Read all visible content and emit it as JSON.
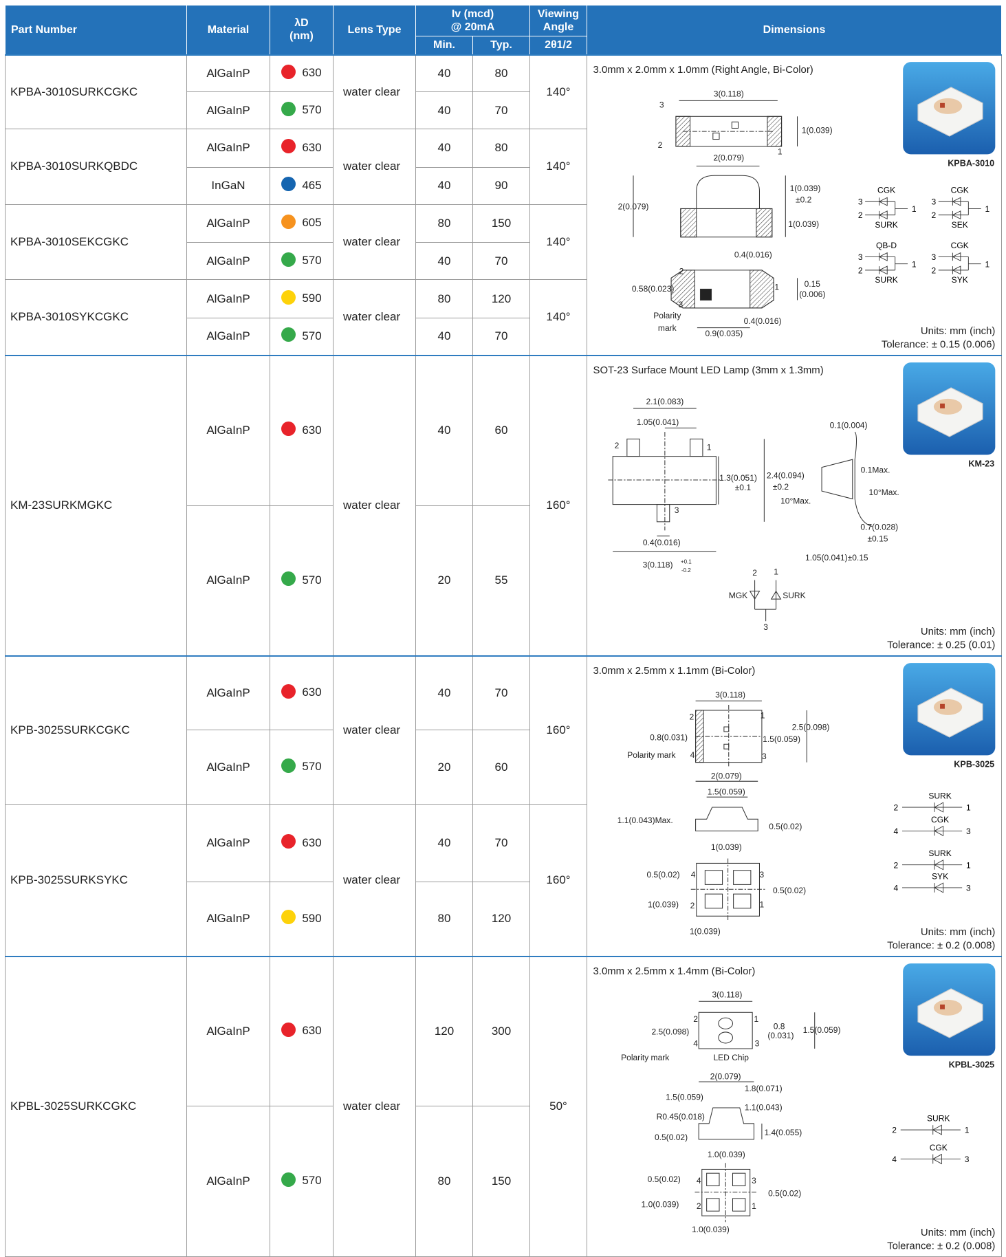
{
  "header": {
    "part_number": "Part Number",
    "material": "Material",
    "wavelength_symbol": "λD",
    "wavelength_unit": "(nm)",
    "lens_type": "Lens Type",
    "intensity": "Iv (mcd)",
    "intensity_condition": "@ 20mA",
    "viewing_angle": "Viewing Angle",
    "min": "Min.",
    "typ": "Typ.",
    "angle_symbol": "2θ1/2",
    "dimensions": "Dimensions"
  },
  "groups": [
    {
      "dimensions": {
        "title": "3.0mm x 2.0mm x 1.0mm (Right Angle, Bi-Color)",
        "image_caption": "KPBA-3010",
        "units": "Units: mm (inch)",
        "tolerance": "Tolerance: ± 0.15 (0.006)",
        "labels": [
          "3(0.118)",
          "3",
          "1(0.039)",
          "2",
          "1",
          "2(0.079)",
          "1(0.039)",
          "±0.2",
          "2(0.079)",
          "1(0.039)",
          "0.4(0.016)",
          "2",
          "0.58(0.023)",
          "1",
          "0.15",
          "(0.006)",
          "3",
          "Polarity",
          "mark",
          "0.4(0.016)",
          "0.9(0.035)"
        ],
        "schematics": [
          {
            "top": "CGK",
            "bottom": "SURK",
            "pins": [
              "3",
              "2",
              "1"
            ]
          },
          {
            "top": "CGK",
            "bottom": "SEK",
            "pins": [
              "3",
              "2",
              "1"
            ]
          },
          {
            "top": "QB-D",
            "bottom": "SURK",
            "pins": [
              "3",
              "2",
              "1"
            ]
          },
          {
            "top": "CGK",
            "bottom": "SYK",
            "pins": [
              "3",
              "2",
              "1"
            ]
          }
        ]
      },
      "parts": [
        {
          "part_number": "KPBA-3010SURKCGKC",
          "lens": "water clear",
          "angle": "140°",
          "rows": [
            {
              "material": "AlGaInP",
              "color": "#e8232a",
              "wavelength": 630,
              "min": 40,
              "typ": 80
            },
            {
              "material": "AlGaInP",
              "color": "#35a94a",
              "wavelength": 570,
              "min": 40,
              "typ": 70
            }
          ]
        },
        {
          "part_number": "KPBA-3010SURKQBDC",
          "lens": "water clear",
          "angle": "140°",
          "rows": [
            {
              "material": "AlGaInP",
              "color": "#e8232a",
              "wavelength": 630,
              "min": 40,
              "typ": 80
            },
            {
              "material": "InGaN",
              "color": "#1565b0",
              "wavelength": 465,
              "min": 40,
              "typ": 90
            }
          ]
        },
        {
          "part_number": "KPBA-3010SEKCGKC",
          "lens": "water clear",
          "angle": "140°",
          "rows": [
            {
              "material": "AlGaInP",
              "color": "#f6921e",
              "wavelength": 605,
              "min": 80,
              "typ": 150
            },
            {
              "material": "AlGaInP",
              "color": "#35a94a",
              "wavelength": 570,
              "min": 40,
              "typ": 70
            }
          ]
        },
        {
          "part_number": "KPBA-3010SYKCGKC",
          "lens": "water clear",
          "angle": "140°",
          "rows": [
            {
              "material": "AlGaInP",
              "color": "#fdd20a",
              "wavelength": 590,
              "min": 80,
              "typ": 120
            },
            {
              "material": "AlGaInP",
              "color": "#35a94a",
              "wavelength": 570,
              "min": 40,
              "typ": 70
            }
          ]
        }
      ]
    },
    {
      "dimensions": {
        "title": "SOT-23 Surface Mount LED Lamp (3mm x 1.3mm)",
        "image_caption": "KM-23",
        "units": "Units: mm (inch)",
        "tolerance": "Tolerance: ± 0.25 (0.01)",
        "labels": [
          "2.1(0.083)",
          "1.05(0.041)",
          "0.1(0.004)",
          "2",
          "1",
          "1.3(0.051)",
          "±0.1",
          "2.4(0.094)",
          "±0.2",
          "0.1Max.",
          "10°Max.",
          "10°Max.",
          "3",
          "0.7(0.028)",
          "±0.15",
          "0.4(0.016)",
          "1.05(0.041)±0.15",
          "3(0.118)",
          "+0.1",
          "-0.2",
          "2",
          "1",
          "MGK",
          "SURK",
          "3"
        ]
      },
      "parts": [
        {
          "part_number": "KM-23SURKMGKC",
          "lens": "water clear",
          "angle": "160°",
          "rows": [
            {
              "material": "AlGaInP",
              "color": "#e8232a",
              "wavelength": 630,
              "min": 40,
              "typ": 60
            },
            {
              "material": "AlGaInP",
              "color": "#35a94a",
              "wavelength": 570,
              "min": 20,
              "typ": 55
            }
          ]
        }
      ]
    },
    {
      "dimensions": {
        "title": "3.0mm x 2.5mm x 1.1mm (Bi-Color)",
        "image_caption": "KPB-3025",
        "units": "Units: mm (inch)",
        "tolerance": "Tolerance: ± 0.2 (0.008)",
        "labels": [
          "3(0.118)",
          "2",
          "1",
          "2.5(0.098)",
          "0.8(0.031)",
          "1.5(0.059)",
          "Polarity mark",
          "4",
          "3",
          "2(0.079)",
          "1.5(0.059)",
          "1.1(0.043)Max.",
          "0.5(0.02)",
          "1(0.039)",
          "0.5(0.02)",
          "4",
          "3",
          "0.5(0.02)",
          "1(0.039)",
          "2",
          "1",
          "1(0.039)"
        ],
        "schematic_lines": [
          {
            "name": "SURK",
            "left": "2",
            "right": "1"
          },
          {
            "name": "CGK",
            "left": "4",
            "right": "3"
          },
          {
            "name": "SURK",
            "left": "2",
            "right": "1"
          },
          {
            "name": "SYK",
            "left": "4",
            "right": "3"
          }
        ]
      },
      "parts": [
        {
          "part_number": "KPB-3025SURKCGKC",
          "lens": "water clear",
          "angle": "160°",
          "rows": [
            {
              "material": "AlGaInP",
              "color": "#e8232a",
              "wavelength": 630,
              "min": 40,
              "typ": 70
            },
            {
              "material": "AlGaInP",
              "color": "#35a94a",
              "wavelength": 570,
              "min": 20,
              "typ": 60
            }
          ]
        },
        {
          "part_number": "KPB-3025SURKSYKC",
          "lens": "water clear",
          "angle": "160°",
          "rows": [
            {
              "material": "AlGaInP",
              "color": "#e8232a",
              "wavelength": 630,
              "min": 40,
              "typ": 70
            },
            {
              "material": "AlGaInP",
              "color": "#fdd20a",
              "wavelength": 590,
              "min": 80,
              "typ": 120
            }
          ]
        }
      ]
    },
    {
      "dimensions": {
        "title": "3.0mm x 2.5mm x 1.4mm (Bi-Color)",
        "image_caption": "KPBL-3025",
        "units": "Units: mm (inch)",
        "tolerance": "Tolerance: ± 0.2 (0.008)",
        "labels": [
          "3(0.118)",
          "2",
          "1",
          "0.8",
          "(0.031)",
          "1.5(0.059)",
          "2.5(0.098)",
          "4",
          "3",
          "Polarity mark",
          "LED Chip",
          "2(0.079)",
          "1.8(0.071)",
          "1.5(0.059)",
          "1.1(0.043)",
          "R0.45(0.018)",
          "1.4(0.055)",
          "0.5(0.02)",
          "1.0(0.039)",
          "0.5(0.02)",
          "4",
          "3",
          "0.5(0.02)",
          "1.0(0.039)",
          "2",
          "1",
          "1.0(0.039)"
        ],
        "schematic_lines": [
          {
            "name": "SURK",
            "left": "2",
            "right": "1"
          },
          {
            "name": "CGK",
            "left": "4",
            "right": "3"
          }
        ]
      },
      "parts": [
        {
          "part_number": "KPBL-3025SURKCGKC",
          "lens": "water clear",
          "angle": "50°",
          "rows": [
            {
              "material": "AlGaInP",
              "color": "#e8232a",
              "wavelength": 630,
              "min": 120,
              "typ": 300
            },
            {
              "material": "AlGaInP",
              "color": "#35a94a",
              "wavelength": 570,
              "min": 80,
              "typ": 150
            }
          ]
        }
      ]
    }
  ]
}
